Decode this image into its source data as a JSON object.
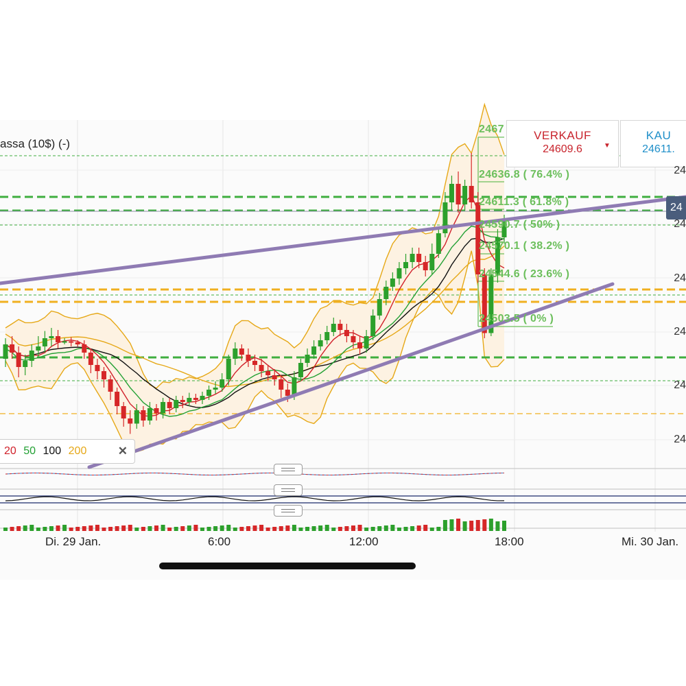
{
  "chart_title": "assa (10$) (-)",
  "sell": {
    "label": "VERKAUF",
    "price": "24609.6",
    "arrow": "▼"
  },
  "buy": {
    "label": "KAU",
    "price": "24611."
  },
  "fib_levels": [
    "2467",
    "24636.8 ( 76.4% )",
    "24611.3 ( 61.8% )",
    "24590.7 ( 50% )",
    "24570.1 ( 38.2% )",
    "24544.6 ( 23.6% )",
    "24503.5 ( 0% )"
  ],
  "right_axis_labels": [
    "24",
    "24",
    "24",
    "24",
    "24",
    "24"
  ],
  "current_price_badge": "24",
  "legend": {
    "items": [
      {
        "label": "20",
        "color": "#d0202a"
      },
      {
        "label": "50",
        "color": "#22a033"
      },
      {
        "label": "100",
        "color": "#111111"
      },
      {
        "label": "200",
        "color": "#e6a817"
      }
    ],
    "close_symbol": "✕"
  },
  "x_axis_labels": [
    "Di. 29 Jan.",
    "6:00",
    "12:00",
    "18:00",
    "Mi. 30 Jan."
  ],
  "colors": {
    "bull": "#2ca02c",
    "bear": "#d62728",
    "trendline": "#8f7bb3",
    "sma20": "#d0202a",
    "sma50": "#22a033",
    "sma100": "#111111",
    "sma200": "#e6a817",
    "fib": "#6cbf5c",
    "fib_dash": "#3fae3f",
    "orange_dash": "#f0b020"
  },
  "chart_data": {
    "type": "candlestick",
    "title": "",
    "x_ticks": [
      "Di. 29 Jan.",
      "6:00",
      "12:00",
      "18:00",
      "Mi. 30 Jan."
    ],
    "fibonacci": [
      {
        "price": 24636.8,
        "pct": "76.4%"
      },
      {
        "price": 24611.3,
        "pct": "61.8%"
      },
      {
        "price": 24590.7,
        "pct": "50%"
      },
      {
        "price": 24570.1,
        "pct": "38.2%"
      },
      {
        "price": 24544.6,
        "pct": "23.6%"
      },
      {
        "price": 24503.5,
        "pct": "0%"
      }
    ],
    "moving_averages": [
      20,
      50,
      100,
      200
    ],
    "candles": [
      [
        24478,
        24492,
        24470,
        24498
      ],
      [
        24492,
        24484,
        24478,
        24500
      ],
      [
        24484,
        24470,
        24460,
        24490
      ],
      [
        24470,
        24476,
        24462,
        24482
      ],
      [
        24476,
        24486,
        24470,
        24492
      ],
      [
        24486,
        24490,
        24480,
        24500
      ],
      [
        24490,
        24498,
        24484,
        24505
      ],
      [
        24498,
        24500,
        24490,
        24508
      ],
      [
        24500,
        24494,
        24488,
        24506
      ],
      [
        24494,
        24495,
        24492,
        24498
      ],
      [
        24495,
        24494,
        24490,
        24499
      ],
      [
        24494,
        24492,
        24490,
        24496
      ],
      [
        24492,
        24484,
        24478,
        24496
      ],
      [
        24484,
        24472,
        24464,
        24488
      ],
      [
        24472,
        24466,
        24458,
        24478
      ],
      [
        24466,
        24458,
        24450,
        24470
      ],
      [
        24458,
        24446,
        24438,
        24462
      ],
      [
        24446,
        24432,
        24424,
        24450
      ],
      [
        24432,
        24420,
        24412,
        24436
      ],
      [
        24420,
        24415,
        24405,
        24428
      ],
      [
        24415,
        24428,
        24410,
        24434
      ],
      [
        24428,
        24418,
        24412,
        24432
      ],
      [
        24418,
        24430,
        24414,
        24436
      ],
      [
        24430,
        24425,
        24418,
        24434
      ],
      [
        24425,
        24436,
        24420,
        24440
      ],
      [
        24436,
        24430,
        24424,
        24440
      ],
      [
        24430,
        24438,
        24426,
        24442
      ],
      [
        24438,
        24436,
        24430,
        24442
      ],
      [
        24436,
        24440,
        24432,
        24445
      ],
      [
        24440,
        24438,
        24434,
        24444
      ],
      [
        24438,
        24442,
        24434,
        24446
      ],
      [
        24442,
        24448,
        24438,
        24452
      ],
      [
        24448,
        24450,
        24444,
        24456
      ],
      [
        24450,
        24458,
        24446,
        24464
      ],
      [
        24458,
        24478,
        24452,
        24482
      ],
      [
        24478,
        24488,
        24472,
        24494
      ],
      [
        24488,
        24482,
        24476,
        24492
      ],
      [
        24482,
        24476,
        24470,
        24488
      ],
      [
        24476,
        24472,
        24466,
        24482
      ],
      [
        24472,
        24466,
        24460,
        24478
      ],
      [
        24466,
        24462,
        24456,
        24472
      ],
      [
        24462,
        24458,
        24452,
        24468
      ],
      [
        24458,
        24448,
        24440,
        24462
      ],
      [
        24448,
        24442,
        24436,
        24454
      ],
      [
        24442,
        24460,
        24438,
        24466
      ],
      [
        24460,
        24474,
        24456,
        24478
      ],
      [
        24474,
        24482,
        24470,
        24488
      ],
      [
        24482,
        24490,
        24478,
        24496
      ],
      [
        24490,
        24496,
        24486,
        24502
      ],
      [
        24496,
        24504,
        24492,
        24510
      ],
      [
        24504,
        24512,
        24500,
        24518
      ],
      [
        24512,
        24506,
        24500,
        24516
      ],
      [
        24506,
        24500,
        24494,
        24512
      ],
      [
        24500,
        24494,
        24488,
        24506
      ],
      [
        24494,
        24488,
        24482,
        24500
      ],
      [
        24488,
        24500,
        24484,
        24506
      ],
      [
        24500,
        24520,
        24496,
        24526
      ],
      [
        24520,
        24536,
        24516,
        24542
      ],
      [
        24536,
        24548,
        24530,
        24554
      ],
      [
        24548,
        24556,
        24544,
        24562
      ],
      [
        24556,
        24566,
        24550,
        24572
      ],
      [
        24566,
        24572,
        24560,
        24580
      ],
      [
        24572,
        24580,
        24566,
        24586
      ],
      [
        24580,
        24572,
        24566,
        24586
      ],
      [
        24572,
        24564,
        24558,
        24578
      ],
      [
        24564,
        24580,
        24560,
        24590
      ],
      [
        24580,
        24600,
        24576,
        24606
      ],
      [
        24600,
        24630,
        24596,
        24640
      ],
      [
        24630,
        24648,
        24622,
        24656
      ],
      [
        24648,
        24628,
        24620,
        24660
      ],
      [
        24628,
        24646,
        24622,
        24652
      ],
      [
        24646,
        24630,
        24624,
        24678
      ],
      [
        24630,
        24560,
        24552,
        24640
      ],
      [
        24560,
        24503,
        24498,
        24566
      ],
      [
        24503,
        24560,
        24500,
        24566
      ],
      [
        24560,
        24596,
        24552,
        24604
      ],
      [
        24596,
        24612,
        24590,
        24618
      ]
    ]
  }
}
